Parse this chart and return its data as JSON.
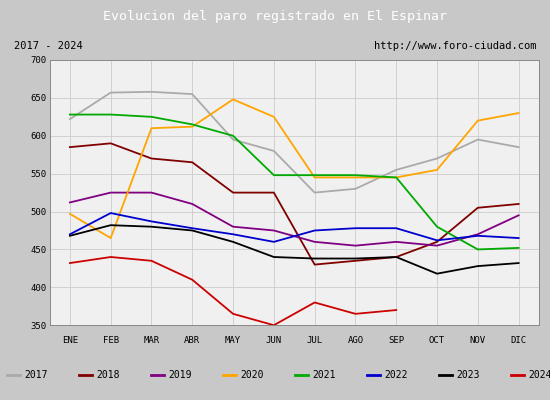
{
  "title": "Evolucion del paro registrado en El Espinar",
  "subtitle_left": "2017 - 2024",
  "subtitle_right": "http://www.foro-ciudad.com",
  "months": [
    "ENE",
    "FEB",
    "MAR",
    "ABR",
    "MAY",
    "JUN",
    "JUL",
    "AGO",
    "SEP",
    "OCT",
    "NOV",
    "DIC"
  ],
  "ylim": [
    350,
    700
  ],
  "yticks": [
    350,
    400,
    450,
    500,
    550,
    600,
    650,
    700
  ],
  "series": {
    "2017": {
      "color": "#aaaaaa",
      "data": [
        622,
        657,
        658,
        655,
        595,
        580,
        525,
        530,
        555,
        570,
        595,
        585
      ]
    },
    "2018": {
      "color": "#800000",
      "data": [
        585,
        590,
        570,
        565,
        525,
        525,
        430,
        435,
        440,
        460,
        505,
        510
      ]
    },
    "2019": {
      "color": "#800080",
      "data": [
        512,
        525,
        525,
        510,
        480,
        475,
        460,
        455,
        460,
        455,
        470,
        495
      ]
    },
    "2020": {
      "color": "#ffa500",
      "data": [
        497,
        465,
        610,
        612,
        648,
        625,
        545,
        545,
        545,
        555,
        620,
        630
      ]
    },
    "2021": {
      "color": "#00aa00",
      "data": [
        628,
        628,
        625,
        615,
        600,
        548,
        548,
        548,
        545,
        480,
        450,
        452
      ]
    },
    "2022": {
      "color": "#0000cc",
      "data": [
        470,
        498,
        487,
        478,
        470,
        460,
        475,
        478,
        478,
        462,
        468,
        465
      ]
    },
    "2023": {
      "color": "#000000",
      "data": [
        468,
        482,
        480,
        475,
        460,
        440,
        438,
        438,
        440,
        418,
        428,
        432
      ]
    },
    "2024": {
      "color": "#cc0000",
      "data": [
        432,
        440,
        435,
        410,
        365,
        350,
        380,
        365,
        370,
        null,
        null,
        null
      ]
    }
  },
  "title_bg": "#3c7fc0",
  "title_color": "#ffffff",
  "subtitle_bg": "#d8d8d8",
  "plot_bg": "#f0f0f0",
  "grid_color": "#cccccc",
  "legend_bg": "#e8e8e8",
  "outer_bg": "#c8c8c8"
}
